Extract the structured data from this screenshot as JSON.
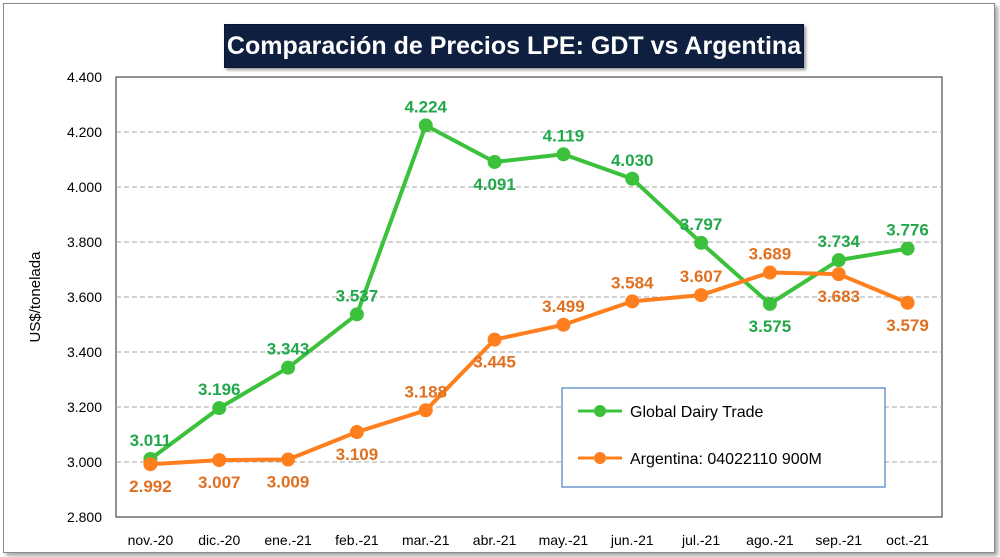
{
  "chart_data": {
    "type": "line",
    "title": "Comparación de Precios LPE: GDT vs Argentina",
    "xlabel": "",
    "ylabel": "US$/tonelada",
    "ylim": [
      2800,
      4400
    ],
    "yticks": [
      2800,
      3000,
      3200,
      3400,
      3600,
      3800,
      4000,
      4200,
      4400
    ],
    "ytick_labels": [
      "2.800",
      "3.000",
      "3.200",
      "3.400",
      "3.600",
      "3.800",
      "4.000",
      "4.200",
      "4.400"
    ],
    "categories": [
      "nov.-20",
      "dic.-20",
      "ene.-21",
      "feb.-21",
      "mar.-21",
      "abr.-21",
      "may.-21",
      "jun.-21",
      "jul.-21",
      "ago.-21",
      "sep.-21",
      "oct.-21"
    ],
    "grid": true,
    "legend_position": "bottom-right",
    "series": [
      {
        "name": "Global Dairy Trade",
        "color": "#3cc13c",
        "label_color": "#22a84a",
        "values": [
          3011,
          3196,
          3343,
          3537,
          4224,
          4091,
          4119,
          4030,
          3797,
          3575,
          3734,
          3776
        ],
        "labels": [
          "3.011",
          "3.196",
          "3.343",
          "3.537",
          "4.224",
          "4.091",
          "4.119",
          "4.030",
          "3.797",
          "3.575",
          "3.734",
          "3.776"
        ]
      },
      {
        "name": "Argentina: 04022110 900M",
        "color": "#ff7f1f",
        "label_color": "#e07020",
        "values": [
          2992,
          3007,
          3009,
          3109,
          3188,
          3445,
          3499,
          3584,
          3607,
          3689,
          3683,
          3579
        ],
        "labels": [
          "2.992",
          "3.007",
          "3.009",
          "3.109",
          "3.188",
          "3.445",
          "3.499",
          "3.584",
          "3.607",
          "3.689",
          "3.683",
          "3.579"
        ]
      }
    ]
  }
}
